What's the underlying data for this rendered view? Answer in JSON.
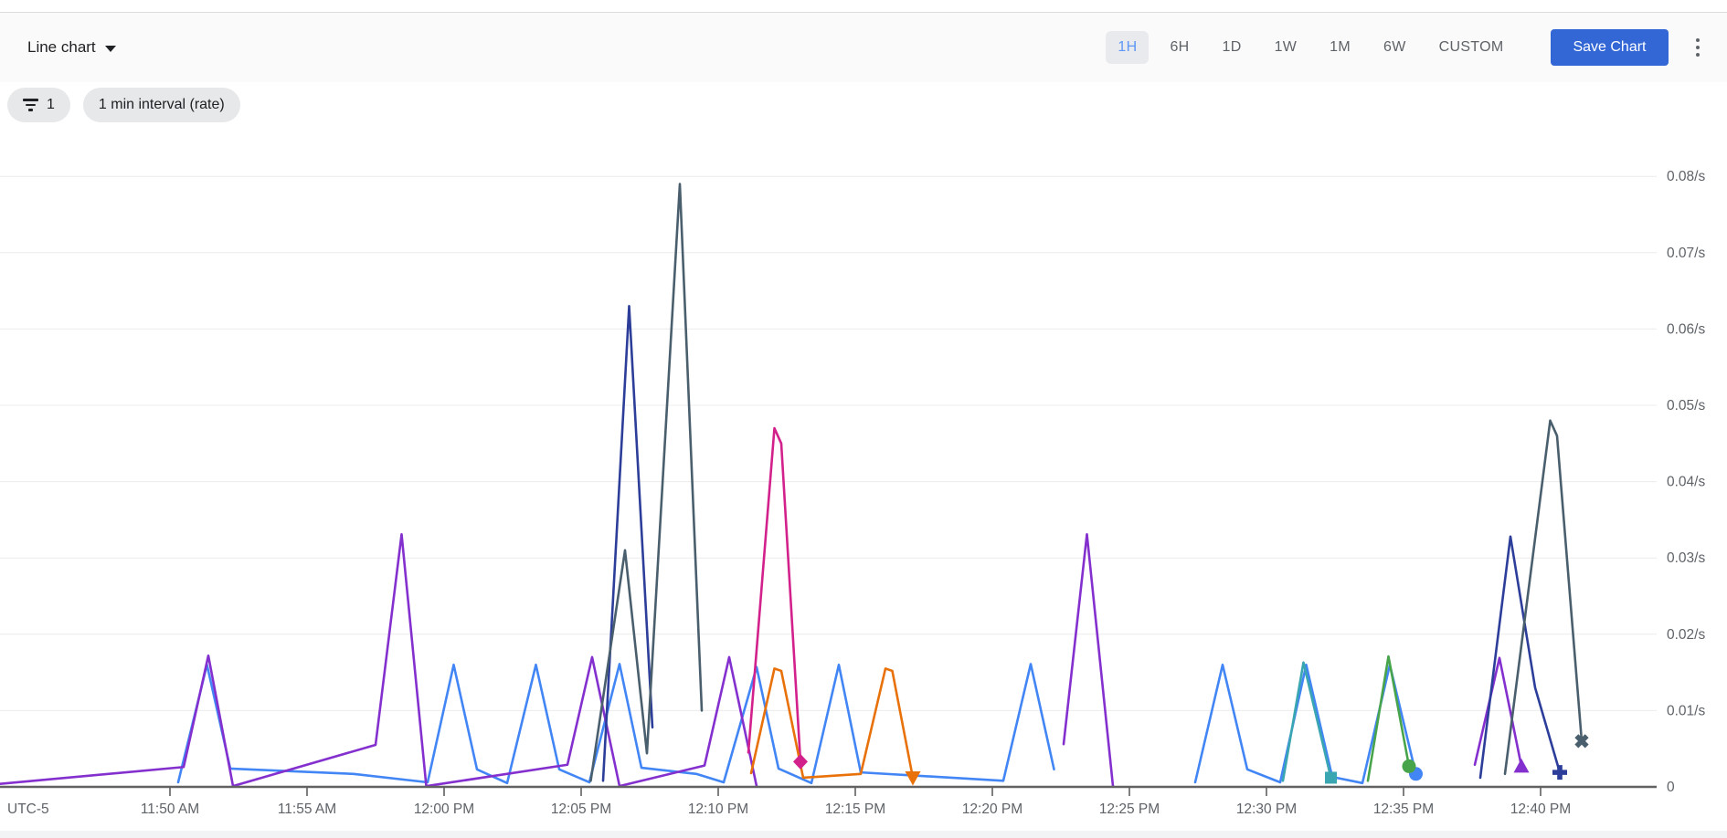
{
  "header": {
    "chart_type_label": "Line chart",
    "time_ranges": [
      {
        "label": "1H",
        "selected": true
      },
      {
        "label": "6H",
        "selected": false
      },
      {
        "label": "1D",
        "selected": false
      },
      {
        "label": "1W",
        "selected": false
      },
      {
        "label": "1M",
        "selected": false
      },
      {
        "label": "6W",
        "selected": false
      },
      {
        "label": "CUSTOM",
        "selected": false
      }
    ],
    "save_button": "Save Chart"
  },
  "filters": {
    "filter_count": "1",
    "interval_chip": "1 min interval (rate)"
  },
  "colors": {
    "save_button_bg": "#3367d6",
    "selected_range_text": "#5e97f5",
    "selected_range_bg": "#e8eaed",
    "chip_bg": "#e7e8ea",
    "axis_line": "#616161",
    "axis_text": "#5f6368",
    "gridline": "#ececec"
  },
  "chart_data": {
    "type": "line",
    "title": "",
    "xlabel": "",
    "ylabel": "",
    "timezone_label": "UTC-5",
    "grid": "horizontal-only",
    "legend": "none",
    "t_unit": "minutes after 11:44 AM (UTC-5)",
    "t_range": [
      -0.2,
      60.2
    ],
    "ylim": [
      0,
      0.086
    ],
    "x_ticks": [
      {
        "label": "11:50 AM",
        "t": 6
      },
      {
        "label": "11:55 AM",
        "t": 11
      },
      {
        "label": "12:00 PM",
        "t": 16
      },
      {
        "label": "12:05 PM",
        "t": 21
      },
      {
        "label": "12:10 PM",
        "t": 26
      },
      {
        "label": "12:15 PM",
        "t": 31
      },
      {
        "label": "12:20 PM",
        "t": 36
      },
      {
        "label": "12:25 PM",
        "t": 41
      },
      {
        "label": "12:30 PM",
        "t": 46
      },
      {
        "label": "12:35 PM",
        "t": 51
      },
      {
        "label": "12:40 PM",
        "t": 56
      }
    ],
    "y_ticks": [
      {
        "label": "0.08/s",
        "v": 0.08
      },
      {
        "label": "0.07/s",
        "v": 0.07
      },
      {
        "label": "0.06/s",
        "v": 0.06
      },
      {
        "label": "0.05/s",
        "v": 0.05
      },
      {
        "label": "0.04/s",
        "v": 0.04
      },
      {
        "label": "0.03/s",
        "v": 0.03
      },
      {
        "label": "0.02/s",
        "v": 0.02
      },
      {
        "label": "0.01/s",
        "v": 0.01
      },
      {
        "label": "0",
        "v": 0
      }
    ],
    "series": [
      {
        "name": "series-blue",
        "color": "#4285f4",
        "marker": "circle",
        "runs": [
          [
            [
              6.3,
              0.0006
            ],
            [
              7.35,
              0.016
            ],
            [
              8.2,
              0.0024
            ],
            [
              12.7,
              0.0017
            ],
            [
              15.4,
              0.0006
            ],
            [
              16.35,
              0.016
            ],
            [
              17.2,
              0.0023
            ],
            [
              18.3,
              0.0005
            ],
            [
              19.35,
              0.016
            ],
            [
              20.2,
              0.0023
            ],
            [
              21.3,
              0.0006
            ],
            [
              22.4,
              0.0161
            ],
            [
              23.2,
              0.0025
            ],
            [
              25.2,
              0.0017
            ],
            [
              26.2,
              0.0006
            ],
            [
              27.4,
              0.0157
            ],
            [
              28.2,
              0.0024
            ],
            [
              29.4,
              0.0005
            ],
            [
              30.4,
              0.016
            ],
            [
              31.2,
              0.0019
            ],
            [
              36.4,
              0.0008
            ],
            [
              37.4,
              0.0161
            ],
            [
              38.25,
              0.0023
            ]
          ],
          [
            [
              43.4,
              0.0006
            ],
            [
              44.4,
              0.016
            ],
            [
              45.3,
              0.0023
            ],
            [
              46.5,
              0.0006
            ],
            [
              47.45,
              0.016
            ],
            [
              48.4,
              0.0013
            ],
            [
              49.5,
              0.0005
            ],
            [
              50.5,
              0.016
            ],
            [
              51.45,
              0.0017
            ]
          ]
        ]
      },
      {
        "name": "series-purple",
        "color": "#8430ce",
        "marker": "triangle-up",
        "runs": [
          [
            [
              -0.2,
              0.0004
            ],
            [
              6.5,
              0.0026
            ],
            [
              7.4,
              0.0172
            ],
            [
              8.3,
              0.0001
            ],
            [
              13.5,
              0.0055
            ],
            [
              14.45,
              0.0331
            ],
            [
              15.35,
              0.0001
            ],
            [
              20.5,
              0.0029
            ],
            [
              21.4,
              0.017
            ],
            [
              22.4,
              0.0001
            ],
            [
              25.5,
              0.0028
            ],
            [
              26.4,
              0.017
            ],
            [
              27.4,
              0.0001
            ]
          ],
          [
            [
              38.6,
              0.0056
            ],
            [
              39.45,
              0.0331
            ],
            [
              40.4,
              0.0001
            ]
          ],
          [
            [
              53.6,
              0.0029
            ],
            [
              54.5,
              0.0169
            ],
            [
              55.3,
              0.0027
            ]
          ]
        ]
      },
      {
        "name": "series-navy",
        "color": "#2c3e99",
        "marker": "plus",
        "runs": [
          [
            [
              21.8,
              0.0008
            ],
            [
              22.75,
              0.063
            ],
            [
              23.6,
              0.0078
            ]
          ],
          [
            [
              53.8,
              0.0012
            ],
            [
              54.9,
              0.0328
            ],
            [
              55.8,
              0.013
            ],
            [
              56.7,
              0.0019
            ]
          ]
        ]
      },
      {
        "name": "series-slate",
        "color": "#4a5f6d",
        "marker": "x",
        "runs": [
          [
            [
              21.35,
              0.0008
            ],
            [
              22.6,
              0.031
            ],
            [
              23.4,
              0.0044
            ],
            [
              24.6,
              0.079
            ],
            [
              25.4,
              0.01
            ]
          ],
          [
            [
              54.7,
              0.0017
            ],
            [
              56.35,
              0.048
            ],
            [
              56.6,
              0.046
            ],
            [
              57.5,
              0.006
            ]
          ]
        ]
      },
      {
        "name": "series-pink",
        "color": "#d3218c",
        "marker": "diamond",
        "runs": [
          [
            [
              27.1,
              0.0045
            ],
            [
              28.05,
              0.047
            ],
            [
              28.3,
              0.045
            ],
            [
              29.0,
              0.0033
            ]
          ]
        ]
      },
      {
        "name": "series-orange",
        "color": "#e8710a",
        "marker": "triangle-down",
        "runs": [
          [
            [
              27.2,
              0.0018
            ],
            [
              28.05,
              0.0155
            ],
            [
              28.3,
              0.0152
            ],
            [
              29.1,
              0.0012
            ],
            [
              31.2,
              0.0017
            ],
            [
              32.1,
              0.0155
            ],
            [
              32.35,
              0.0152
            ],
            [
              33.1,
              0.0012
            ]
          ]
        ]
      },
      {
        "name": "series-teal",
        "color": "#3aa6b2",
        "marker": "square",
        "runs": [
          [
            [
              46.6,
              0.0008
            ],
            [
              47.35,
              0.0163
            ],
            [
              48.35,
              0.0012
            ]
          ]
        ]
      },
      {
        "name": "series-green",
        "color": "#47a44b",
        "marker": "circle",
        "runs": [
          [
            [
              49.7,
              0.0008
            ],
            [
              50.45,
              0.0171
            ],
            [
              51.2,
              0.0027
            ]
          ]
        ]
      }
    ]
  }
}
